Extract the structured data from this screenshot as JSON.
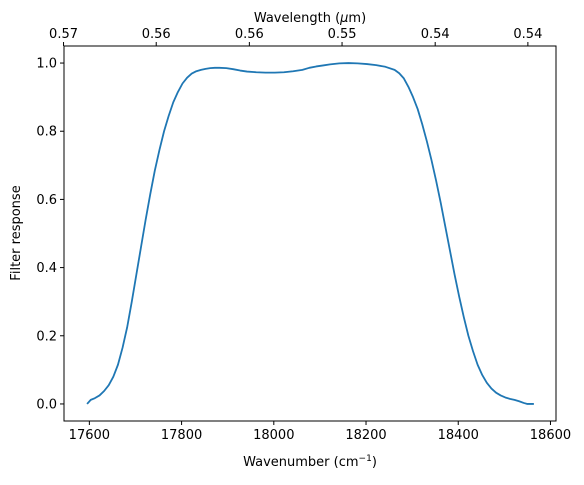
{
  "chart_data": {
    "type": "line",
    "title": "",
    "xlabel": "Wavenumber (cm",
    "xlabel_sup": "−1",
    "xlabel_close": ")",
    "ylabel": "Filter response",
    "top_xlabel_pre": "Wavelength (",
    "top_xlabel_mu": "μ",
    "top_xlabel_post": "m)",
    "xlim": [
      17545,
      18612
    ],
    "ylim": [
      -0.05,
      1.05
    ],
    "x_ticks": [
      17600,
      17800,
      18000,
      18200,
      18400,
      18600
    ],
    "x_tick_labels": [
      "17600",
      "17800",
      "18000",
      "18200",
      "18400",
      "18600"
    ],
    "y_ticks": [
      0.0,
      0.2,
      0.4,
      0.6,
      0.8,
      1.0
    ],
    "y_tick_labels": [
      "0.0",
      "0.2",
      "0.4",
      "0.6",
      "0.8",
      "1.0"
    ],
    "top_ticks": [
      {
        "wavenumber": 17544,
        "label": "0.57"
      },
      {
        "wavenumber": 17745,
        "label": "0.56"
      },
      {
        "wavenumber": 17947,
        "label": "0.56"
      },
      {
        "wavenumber": 18148,
        "label": "0.55"
      },
      {
        "wavenumber": 18350,
        "label": "0.54"
      },
      {
        "wavenumber": 18551,
        "label": "0.54"
      }
    ],
    "line_color": "#1f77b4",
    "grid": false,
    "series": [
      {
        "x": [
          17595,
          17603,
          17612,
          17622,
          17632,
          17642,
          17652,
          17662,
          17672,
          17682,
          17692,
          17702,
          17712,
          17722,
          17732,
          17742,
          17752,
          17762,
          17772,
          17782,
          17792,
          17802,
          17812,
          17822,
          17832,
          17842,
          17852,
          17862,
          17872,
          17882,
          17897,
          17912,
          17927,
          17942,
          17962,
          17982,
          18002,
          18022,
          18042,
          18062,
          18077,
          18092,
          18107,
          18122,
          18142,
          18162,
          18182,
          18202,
          18222,
          18242,
          18262,
          18272,
          18282,
          18292,
          18302,
          18312,
          18322,
          18332,
          18342,
          18352,
          18362,
          18372,
          18382,
          18392,
          18402,
          18412,
          18422,
          18432,
          18442,
          18452,
          18462,
          18472,
          18482,
          18492,
          18502,
          18512,
          18522,
          18532,
          18542,
          18550,
          18557,
          18564
        ],
        "y": [
          0.0,
          0.012,
          0.017,
          0.025,
          0.038,
          0.055,
          0.08,
          0.115,
          0.165,
          0.225,
          0.3,
          0.38,
          0.46,
          0.54,
          0.615,
          0.685,
          0.745,
          0.8,
          0.845,
          0.885,
          0.915,
          0.94,
          0.957,
          0.969,
          0.976,
          0.98,
          0.983,
          0.985,
          0.986,
          0.986,
          0.985,
          0.982,
          0.978,
          0.975,
          0.973,
          0.972,
          0.972,
          0.973,
          0.976,
          0.98,
          0.986,
          0.99,
          0.993,
          0.996,
          0.999,
          1.0,
          0.999,
          0.997,
          0.994,
          0.989,
          0.98,
          0.97,
          0.955,
          0.93,
          0.9,
          0.865,
          0.82,
          0.77,
          0.715,
          0.655,
          0.59,
          0.52,
          0.45,
          0.38,
          0.315,
          0.255,
          0.2,
          0.155,
          0.115,
          0.085,
          0.062,
          0.045,
          0.033,
          0.025,
          0.019,
          0.015,
          0.012,
          0.008,
          0.003,
          0.0,
          0.0,
          0.0
        ]
      }
    ]
  }
}
